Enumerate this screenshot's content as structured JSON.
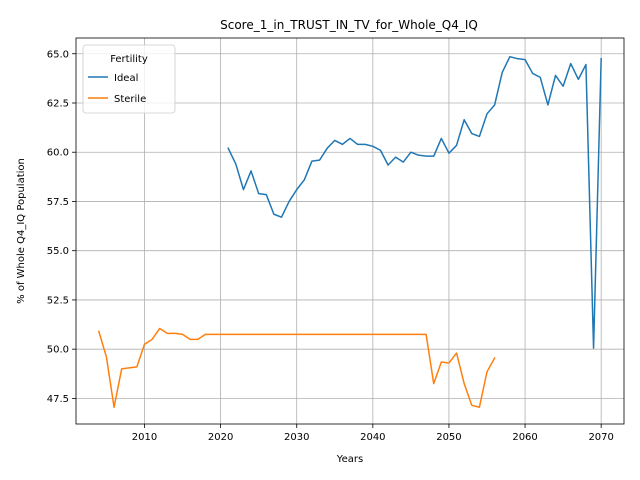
{
  "chart_data": {
    "type": "line",
    "title": "Score_1_in_TRUST_IN_TV_for_Whole_Q4_IQ",
    "xlabel": "Years",
    "ylabel": "% of Whole Q4_IQ Population",
    "xlim": [
      2001,
      2073
    ],
    "ylim": [
      46.2,
      65.8
    ],
    "xticks": [
      2010,
      2020,
      2030,
      2040,
      2050,
      2060,
      2070
    ],
    "yticks": [
      47.5,
      50.0,
      52.5,
      55.0,
      57.5,
      60.0,
      62.5,
      65.0
    ],
    "xtick_labels": [
      "2010",
      "2020",
      "2030",
      "2040",
      "2050",
      "2060",
      "2070"
    ],
    "ytick_labels": [
      "47.5",
      "50.0",
      "52.5",
      "55.0",
      "57.5",
      "60.0",
      "62.5",
      "65.0"
    ],
    "grid": true,
    "legend": {
      "title": "Fertility",
      "placement": "upper-left"
    },
    "series": [
      {
        "name": "Ideal",
        "color": "#1f77b4",
        "x": [
          2021,
          2022,
          2023,
          2024,
          2025,
          2026,
          2027,
          2028,
          2029,
          2030,
          2031,
          2032,
          2033,
          2034,
          2035,
          2036,
          2037,
          2038,
          2039,
          2040,
          2041,
          2042,
          2043,
          2044,
          2045,
          2046,
          2047,
          2048,
          2049,
          2050,
          2051,
          2052,
          2053,
          2054,
          2055,
          2056,
          2057,
          2058,
          2059,
          2060,
          2061,
          2062,
          2063,
          2064,
          2065,
          2066,
          2067,
          2068,
          2069,
          2070
        ],
        "y": [
          60.2,
          59.4,
          58.1,
          59.05,
          57.9,
          57.85,
          56.85,
          56.7,
          57.5,
          58.1,
          58.6,
          59.55,
          59.6,
          60.2,
          60.6,
          60.4,
          60.7,
          60.4,
          60.4,
          60.3,
          60.1,
          59.35,
          59.75,
          59.5,
          60.0,
          59.85,
          59.8,
          59.8,
          60.7,
          59.95,
          60.35,
          61.65,
          60.95,
          60.8,
          61.95,
          62.4,
          64.05,
          64.85,
          64.75,
          64.7,
          64.0,
          63.8,
          62.4,
          63.9,
          63.35,
          64.5,
          63.7,
          64.45,
          50.05,
          64.75
        ]
      },
      {
        "name": "Sterile",
        "color": "#ff7f0e",
        "x": [
          2004,
          2005,
          2006,
          2007,
          2008,
          2009,
          2010,
          2011,
          2012,
          2013,
          2014,
          2015,
          2016,
          2017,
          2018,
          2019,
          2020,
          2021,
          2022,
          2023,
          2024,
          2025,
          2026,
          2027,
          2028,
          2029,
          2030,
          2031,
          2032,
          2033,
          2034,
          2035,
          2036,
          2037,
          2038,
          2039,
          2040,
          2041,
          2042,
          2043,
          2044,
          2045,
          2046,
          2047,
          2048,
          2049,
          2050,
          2051,
          2052,
          2053,
          2054,
          2055,
          2056
        ],
        "y": [
          50.9,
          49.6,
          47.05,
          49.0,
          49.05,
          49.1,
          50.25,
          50.5,
          51.05,
          50.8,
          50.8,
          50.75,
          50.5,
          50.5,
          50.75,
          50.75,
          50.75,
          50.75,
          50.75,
          50.75,
          50.75,
          50.75,
          50.75,
          50.75,
          50.75,
          50.75,
          50.75,
          50.75,
          50.75,
          50.75,
          50.75,
          50.75,
          50.75,
          50.75,
          50.75,
          50.75,
          50.75,
          50.75,
          50.75,
          50.75,
          50.75,
          50.75,
          50.75,
          50.75,
          48.25,
          49.35,
          49.3,
          49.8,
          48.25,
          47.15,
          47.05,
          48.85,
          49.55
        ]
      }
    ]
  }
}
